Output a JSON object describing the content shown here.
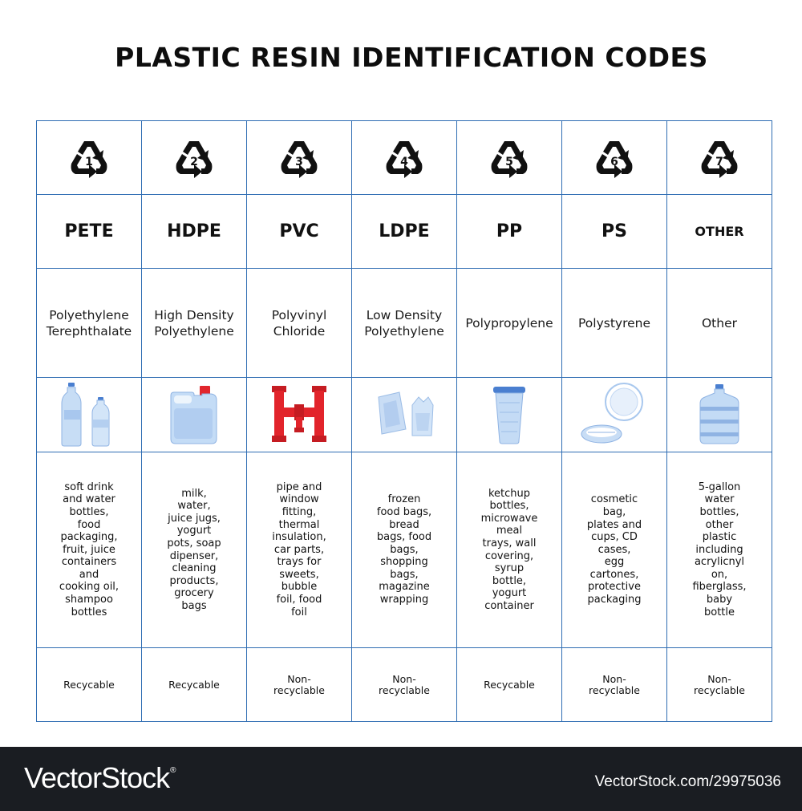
{
  "title": "PLASTIC RESIN IDENTIFICATION CODES",
  "columns": [
    {
      "code": "1",
      "abbr": "PETE",
      "name": "Polyethylene\nTerephthalate",
      "icon": "water-bottles-icon",
      "uses": "soft drink\nand water\nbottles,\nfood\npackaging,\nfruit, juice\ncontainers\nand\ncooking oil,\nshampoo\nbottles",
      "status": "Recycable"
    },
    {
      "code": "2",
      "abbr": "HDPE",
      "name": "High Density\nPolyethylene",
      "icon": "canister-icon",
      "uses": "milk,\nwater,\njuice jugs,\nyogurt\npots, soap\ndipenser,\ncleaning\nproducts,\ngrocery\nbags",
      "status": "Recycable"
    },
    {
      "code": "3",
      "abbr": "PVC",
      "name": "Polyvinyl\nChloride",
      "icon": "pipe-fitting-icon",
      "uses": "pipe and\nwindow\nfitting,\nthermal\ninsulation,\ncar parts,\ntrays for\nsweets,\nbubble\nfoil, food\nfoil",
      "status": "Non-\nrecyclable"
    },
    {
      "code": "4",
      "abbr": "LDPE",
      "name": "Low Density\nPolyethylene",
      "icon": "plastic-bags-icon",
      "uses": "frozen\nfood bags,\nbread\nbags, food\nbags,\nshopping\nbags,\nmagazine\nwrapping",
      "status": "Non-\nrecyclable"
    },
    {
      "code": "5",
      "abbr": "PP",
      "name": "Polypropylene",
      "icon": "cup-icon",
      "uses": "ketchup\nbottles,\nmicrowave\nmeal\ntrays, wall\ncovering,\nsyrup\nbottle,\nyogurt\ncontainer",
      "status": "Recycable"
    },
    {
      "code": "6",
      "abbr": "PS",
      "name": "Polystyrene",
      "icon": "plates-icon",
      "uses": "cosmetic\nbag,\nplates and\ncups, CD\ncases,\negg\ncartones,\nprotective\npackaging",
      "status": "Non-\nrecyclable"
    },
    {
      "code": "7",
      "abbr": "OTHER",
      "name": "Other",
      "icon": "water-jug-icon",
      "uses": "5-gallon\nwater\nbottles,\nother\nplastic\nincluding\nacrylicnyl\non,\nfiberglass,\nbaby\nbottle",
      "status": "Non-\nrecyclable"
    }
  ],
  "colors": {
    "border": "#2f6db3",
    "footer": "#1a1d22",
    "pvc": "#e2242b",
    "plastic": "#b9d3f2"
  },
  "footer": {
    "logo": "VectorStock",
    "registered": "®",
    "id": "VectorStock.com/29975036"
  }
}
